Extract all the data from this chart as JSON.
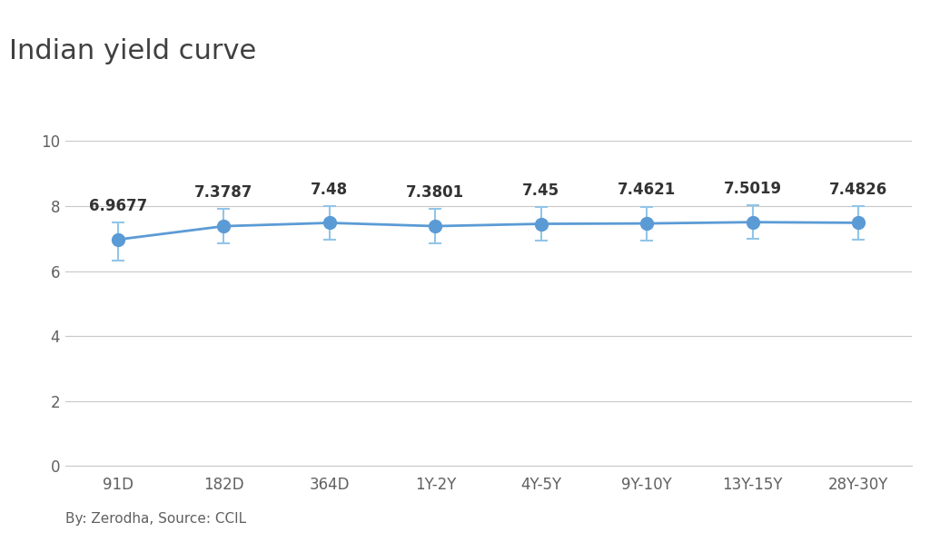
{
  "title": "Indian yield curve",
  "categories": [
    "91D",
    "182D",
    "364D",
    "1Y-2Y",
    "4Y-5Y",
    "9Y-10Y",
    "13Y-15Y",
    "28Y-30Y"
  ],
  "values": [
    6.9677,
    7.3787,
    7.48,
    7.3801,
    7.45,
    7.4621,
    7.5019,
    7.4826
  ],
  "error_low": [
    0.65,
    0.52,
    0.52,
    0.52,
    0.52,
    0.52,
    0.52,
    0.52
  ],
  "error_high": [
    0.52,
    0.52,
    0.52,
    0.52,
    0.52,
    0.52,
    0.52,
    0.52
  ],
  "labels": [
    "6.9677",
    "7.3787",
    "7.48",
    "7.3801",
    "7.45",
    "7.4621",
    "7.5019",
    "7.4826"
  ],
  "ylim": [
    0,
    10
  ],
  "yticks": [
    0,
    2,
    4,
    6,
    8,
    10
  ],
  "line_color": "#5b9bd5",
  "marker_color": "#5b9bd5",
  "error_color": "#92c5e8",
  "grid_color": "#c8c8c8",
  "bg_color": "#ffffff",
  "title_fontsize": 22,
  "title_color": "#404040",
  "label_fontsize": 12,
  "tick_fontsize": 12,
  "tick_color": "#606060",
  "footer_text": "By: Zerodha, Source: CCIL",
  "footer_fontsize": 11,
  "footer_color": "#606060"
}
